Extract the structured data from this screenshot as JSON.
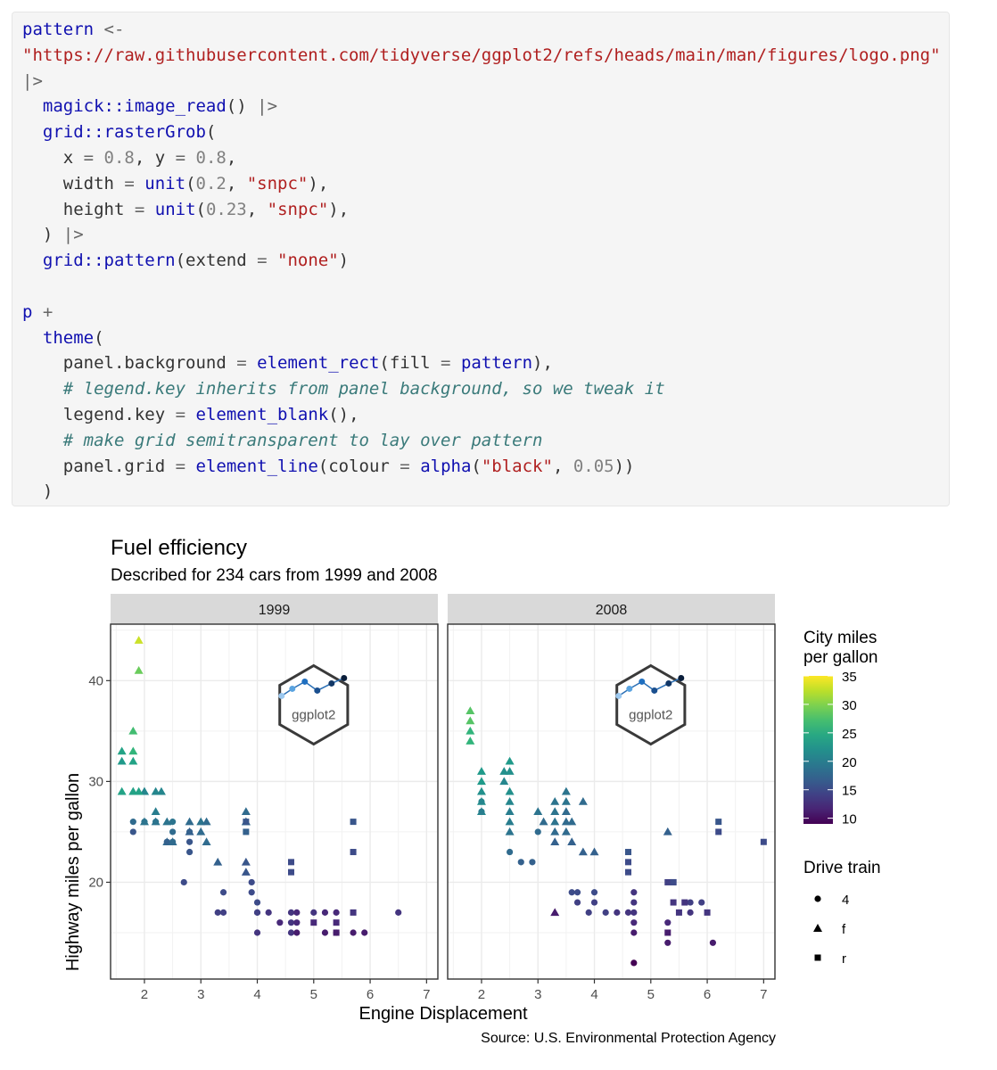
{
  "code": {
    "lines": [
      [
        {
          "t": "pattern",
          "c": "kw"
        },
        {
          "t": " <-",
          "c": "op"
        }
      ],
      [
        {
          "t": "\"https://raw.githubusercontent.com/tidyverse/ggplot2/refs/heads/main/man/figures/logo.png\"",
          "c": "str"
        }
      ],
      [
        {
          "t": "|>",
          "c": "op"
        }
      ],
      [
        {
          "t": "  ",
          "c": "tx"
        },
        {
          "t": "magick::image_read",
          "c": "fn"
        },
        {
          "t": "() ",
          "c": "tx"
        },
        {
          "t": "|>",
          "c": "op"
        }
      ],
      [
        {
          "t": "  ",
          "c": "tx"
        },
        {
          "t": "grid::rasterGrob",
          "c": "fn"
        },
        {
          "t": "(",
          "c": "tx"
        }
      ],
      [
        {
          "t": "    x ",
          "c": "tx"
        },
        {
          "t": "=",
          "c": "op"
        },
        {
          "t": " ",
          "c": "tx"
        },
        {
          "t": "0.8",
          "c": "num"
        },
        {
          "t": ", y ",
          "c": "tx"
        },
        {
          "t": "=",
          "c": "op"
        },
        {
          "t": " ",
          "c": "tx"
        },
        {
          "t": "0.8",
          "c": "num"
        },
        {
          "t": ",",
          "c": "tx"
        }
      ],
      [
        {
          "t": "    width ",
          "c": "tx"
        },
        {
          "t": "=",
          "c": "op"
        },
        {
          "t": " ",
          "c": "tx"
        },
        {
          "t": "unit",
          "c": "fn"
        },
        {
          "t": "(",
          "c": "tx"
        },
        {
          "t": "0.2",
          "c": "num"
        },
        {
          "t": ", ",
          "c": "tx"
        },
        {
          "t": "\"snpc\"",
          "c": "str"
        },
        {
          "t": "),",
          "c": "tx"
        }
      ],
      [
        {
          "t": "    height ",
          "c": "tx"
        },
        {
          "t": "=",
          "c": "op"
        },
        {
          "t": " ",
          "c": "tx"
        },
        {
          "t": "unit",
          "c": "fn"
        },
        {
          "t": "(",
          "c": "tx"
        },
        {
          "t": "0.23",
          "c": "num"
        },
        {
          "t": ", ",
          "c": "tx"
        },
        {
          "t": "\"snpc\"",
          "c": "str"
        },
        {
          "t": "),",
          "c": "tx"
        }
      ],
      [
        {
          "t": "  ) ",
          "c": "tx"
        },
        {
          "t": "|>",
          "c": "op"
        }
      ],
      [
        {
          "t": "  ",
          "c": "tx"
        },
        {
          "t": "grid::pattern",
          "c": "fn"
        },
        {
          "t": "(extend ",
          "c": "tx"
        },
        {
          "t": "=",
          "c": "op"
        },
        {
          "t": " ",
          "c": "tx"
        },
        {
          "t": "\"none\"",
          "c": "str"
        },
        {
          "t": ")",
          "c": "tx"
        }
      ],
      [],
      [
        {
          "t": "p",
          "c": "kw"
        },
        {
          "t": " +",
          "c": "op"
        }
      ],
      [
        {
          "t": "  ",
          "c": "tx"
        },
        {
          "t": "theme",
          "c": "fn"
        },
        {
          "t": "(",
          "c": "tx"
        }
      ],
      [
        {
          "t": "    panel.background ",
          "c": "tx"
        },
        {
          "t": "=",
          "c": "op"
        },
        {
          "t": " ",
          "c": "tx"
        },
        {
          "t": "element_rect",
          "c": "fn"
        },
        {
          "t": "(fill ",
          "c": "tx"
        },
        {
          "t": "=",
          "c": "op"
        },
        {
          "t": " ",
          "c": "tx"
        },
        {
          "t": "pattern",
          "c": "kw"
        },
        {
          "t": "),",
          "c": "tx"
        }
      ],
      [
        {
          "t": "    # legend.key inherits from panel background, so we tweak it",
          "c": "cm"
        }
      ],
      [
        {
          "t": "    legend.key ",
          "c": "tx"
        },
        {
          "t": "=",
          "c": "op"
        },
        {
          "t": " ",
          "c": "tx"
        },
        {
          "t": "element_blank",
          "c": "fn"
        },
        {
          "t": "(),",
          "c": "tx"
        }
      ],
      [
        {
          "t": "    # make grid semitransparent to lay over pattern",
          "c": "cm"
        }
      ],
      [
        {
          "t": "    panel.grid ",
          "c": "tx"
        },
        {
          "t": "=",
          "c": "op"
        },
        {
          "t": " ",
          "c": "tx"
        },
        {
          "t": "element_line",
          "c": "fn"
        },
        {
          "t": "(colour ",
          "c": "tx"
        },
        {
          "t": "=",
          "c": "op"
        },
        {
          "t": " ",
          "c": "tx"
        },
        {
          "t": "alpha",
          "c": "fn"
        },
        {
          "t": "(",
          "c": "tx"
        },
        {
          "t": "\"black\"",
          "c": "str"
        },
        {
          "t": ", ",
          "c": "tx"
        },
        {
          "t": "0.05",
          "c": "num"
        },
        {
          "t": "))",
          "c": "tx"
        }
      ],
      [
        {
          "t": "  )",
          "c": "tx"
        }
      ]
    ]
  },
  "chart_data": {
    "type": "scatter",
    "title": "Fuel efficiency",
    "subtitle": "Described for 234 cars from 1999 and 2008",
    "xlabel": "Engine Displacement",
    "ylabel": "Highway miles per gallon",
    "caption": "Source: U.S. Environmental Protection Agency",
    "xlim": [
      1.4,
      7.2
    ],
    "ylim": [
      10.4,
      45.6
    ],
    "x_ticks": [
      2,
      3,
      4,
      5,
      6,
      7
    ],
    "y_ticks": [
      20,
      30,
      40
    ],
    "grid": true,
    "facets": [
      "1999",
      "2008"
    ],
    "logo_text": "ggplot2",
    "legend": {
      "placement": "right",
      "color_title": "City miles\nper gallon",
      "color_breaks": [
        10,
        15,
        20,
        25,
        30,
        35
      ],
      "color_range": [
        9,
        35
      ],
      "shape_title": "Drive train",
      "shape_entries": [
        "4",
        "f",
        "r"
      ]
    },
    "series_encoding": "each point: [displ, hwy, cty, drv]",
    "points_1999": [
      [
        1.8,
        29,
        21,
        "f"
      ],
      [
        2.0,
        29,
        20,
        "f"
      ],
      [
        2.0,
        29,
        21,
        "f"
      ],
      [
        2.2,
        26,
        19,
        "f"
      ],
      [
        2.2,
        27,
        20,
        "f"
      ],
      [
        2.4,
        26,
        19,
        "f"
      ],
      [
        2.4,
        24,
        18,
        "f"
      ],
      [
        2.5,
        24,
        18,
        "f"
      ],
      [
        2.8,
        26,
        18,
        "f"
      ],
      [
        2.8,
        25,
        17,
        "f"
      ],
      [
        3.0,
        26,
        19,
        "f"
      ],
      [
        3.0,
        25,
        18,
        "f"
      ],
      [
        3.1,
        26,
        18,
        "f"
      ],
      [
        3.1,
        24,
        18,
        "f"
      ],
      [
        3.3,
        22,
        17,
        "f"
      ],
      [
        3.8,
        26,
        18,
        "f"
      ],
      [
        3.8,
        27,
        18,
        "f"
      ],
      [
        3.8,
        22,
        16,
        "f"
      ],
      [
        3.8,
        21,
        16,
        "f"
      ],
      [
        3.8,
        26,
        18,
        "f"
      ],
      [
        1.6,
        33,
        24,
        "f"
      ],
      [
        1.6,
        32,
        23,
        "f"
      ],
      [
        1.6,
        29,
        24,
        "f"
      ],
      [
        1.8,
        35,
        27,
        "f"
      ],
      [
        1.8,
        33,
        26,
        "f"
      ],
      [
        1.8,
        29,
        24,
        "f"
      ],
      [
        1.8,
        32,
        24,
        "f"
      ],
      [
        1.9,
        44,
        33,
        "f"
      ],
      [
        1.9,
        41,
        29,
        "f"
      ],
      [
        1.9,
        29,
        24,
        "f"
      ],
      [
        2.0,
        26,
        19,
        "f"
      ],
      [
        2.2,
        29,
        21,
        "f"
      ],
      [
        2.3,
        29,
        21,
        "f"
      ],
      [
        1.8,
        26,
        18,
        "4"
      ],
      [
        1.8,
        25,
        16,
        "4"
      ],
      [
        2.0,
        26,
        19,
        "4"
      ],
      [
        2.2,
        26,
        19,
        "4"
      ],
      [
        2.4,
        24,
        17,
        "4"
      ],
      [
        2.5,
        25,
        18,
        "4"
      ],
      [
        2.5,
        24,
        18,
        "4"
      ],
      [
        2.5,
        26,
        19,
        "4"
      ],
      [
        2.7,
        20,
        15,
        "4"
      ],
      [
        2.8,
        25,
        17,
        "4"
      ],
      [
        2.8,
        24,
        16,
        "4"
      ],
      [
        2.8,
        23,
        16,
        "4"
      ],
      [
        3.3,
        17,
        14,
        "4"
      ],
      [
        3.4,
        17,
        14,
        "4"
      ],
      [
        3.4,
        19,
        15,
        "4"
      ],
      [
        3.9,
        20,
        15,
        "4"
      ],
      [
        3.9,
        19,
        15,
        "4"
      ],
      [
        4.0,
        17,
        14,
        "4"
      ],
      [
        4.0,
        15,
        13,
        "4"
      ],
      [
        4.0,
        18,
        15,
        "4"
      ],
      [
        4.0,
        17,
        14,
        "4"
      ],
      [
        4.6,
        17,
        13,
        "4"
      ],
      [
        4.6,
        16,
        13,
        "4"
      ],
      [
        4.6,
        15,
        13,
        "4"
      ],
      [
        4.7,
        17,
        12,
        "4"
      ],
      [
        4.7,
        15,
        11,
        "4"
      ],
      [
        4.7,
        16,
        12,
        "4"
      ],
      [
        5.0,
        17,
        13,
        "4"
      ],
      [
        5.2,
        15,
        11,
        "4"
      ],
      [
        5.2,
        17,
        12,
        "4"
      ],
      [
        5.4,
        15,
        11,
        "4"
      ],
      [
        5.4,
        17,
        12,
        "4"
      ],
      [
        5.7,
        15,
        11,
        "4"
      ],
      [
        5.9,
        15,
        11,
        "4"
      ],
      [
        6.5,
        17,
        13,
        "4"
      ],
      [
        4.2,
        17,
        13,
        "4"
      ],
      [
        4.4,
        16,
        12,
        "4"
      ],
      [
        3.8,
        25,
        17,
        "r"
      ],
      [
        3.8,
        26,
        16,
        "r"
      ],
      [
        4.6,
        21,
        15,
        "r"
      ],
      [
        4.6,
        22,
        15,
        "r"
      ],
      [
        5.0,
        16,
        12,
        "r"
      ],
      [
        5.4,
        16,
        12,
        "r"
      ],
      [
        5.4,
        15,
        11,
        "r"
      ],
      [
        5.7,
        26,
        16,
        "r"
      ],
      [
        5.7,
        23,
        15,
        "r"
      ],
      [
        5.7,
        17,
        13,
        "r"
      ]
    ],
    "points_2008": [
      [
        1.8,
        37,
        28,
        "f"
      ],
      [
        1.8,
        36,
        28,
        "f"
      ],
      [
        1.8,
        35,
        26,
        "f"
      ],
      [
        1.8,
        34,
        26,
        "f"
      ],
      [
        2.0,
        31,
        23,
        "f"
      ],
      [
        2.0,
        30,
        23,
        "f"
      ],
      [
        2.0,
        29,
        22,
        "f"
      ],
      [
        2.0,
        28,
        22,
        "f"
      ],
      [
        2.0,
        27,
        21,
        "f"
      ],
      [
        2.4,
        31,
        22,
        "f"
      ],
      [
        2.4,
        30,
        21,
        "f"
      ],
      [
        2.5,
        32,
        23,
        "f"
      ],
      [
        2.5,
        31,
        22,
        "f"
      ],
      [
        2.5,
        29,
        22,
        "f"
      ],
      [
        2.5,
        28,
        21,
        "f"
      ],
      [
        2.5,
        27,
        20,
        "f"
      ],
      [
        2.5,
        26,
        20,
        "f"
      ],
      [
        2.5,
        25,
        19,
        "f"
      ],
      [
        3.0,
        27,
        19,
        "f"
      ],
      [
        3.1,
        26,
        18,
        "f"
      ],
      [
        3.3,
        28,
        19,
        "f"
      ],
      [
        3.3,
        27,
        19,
        "f"
      ],
      [
        3.3,
        26,
        19,
        "f"
      ],
      [
        3.3,
        25,
        18,
        "f"
      ],
      [
        3.3,
        24,
        17,
        "f"
      ],
      [
        3.3,
        17,
        11,
        "f"
      ],
      [
        3.5,
        29,
        19,
        "f"
      ],
      [
        3.5,
        28,
        19,
        "f"
      ],
      [
        3.5,
        27,
        18,
        "f"
      ],
      [
        3.5,
        26,
        18,
        "f"
      ],
      [
        3.5,
        25,
        18,
        "f"
      ],
      [
        3.6,
        26,
        18,
        "f"
      ],
      [
        3.6,
        24,
        17,
        "f"
      ],
      [
        3.8,
        28,
        18,
        "f"
      ],
      [
        3.8,
        23,
        17,
        "f"
      ],
      [
        4.0,
        23,
        17,
        "f"
      ],
      [
        5.3,
        25,
        17,
        "f"
      ],
      [
        2.0,
        28,
        21,
        "4"
      ],
      [
        2.0,
        27,
        20,
        "4"
      ],
      [
        2.5,
        23,
        18,
        "4"
      ],
      [
        2.7,
        22,
        17,
        "4"
      ],
      [
        2.9,
        22,
        17,
        "4"
      ],
      [
        3.0,
        25,
        18,
        "4"
      ],
      [
        3.6,
        19,
        15,
        "4"
      ],
      [
        3.7,
        19,
        15,
        "4"
      ],
      [
        3.7,
        18,
        14,
        "4"
      ],
      [
        3.9,
        17,
        14,
        "4"
      ],
      [
        4.0,
        19,
        15,
        "4"
      ],
      [
        4.0,
        18,
        14,
        "4"
      ],
      [
        4.2,
        17,
        14,
        "4"
      ],
      [
        4.4,
        17,
        13,
        "4"
      ],
      [
        4.6,
        17,
        13,
        "4"
      ],
      [
        4.7,
        19,
        13,
        "4"
      ],
      [
        4.7,
        18,
        13,
        "4"
      ],
      [
        4.7,
        17,
        13,
        "4"
      ],
      [
        4.7,
        16,
        12,
        "4"
      ],
      [
        4.7,
        15,
        11,
        "4"
      ],
      [
        4.7,
        12,
        9,
        "4"
      ],
      [
        5.3,
        16,
        12,
        "4"
      ],
      [
        5.3,
        14,
        11,
        "4"
      ],
      [
        5.7,
        17,
        13,
        "4"
      ],
      [
        5.7,
        18,
        14,
        "4"
      ],
      [
        5.9,
        18,
        14,
        "4"
      ],
      [
        6.1,
        14,
        11,
        "4"
      ],
      [
        4.6,
        23,
        16,
        "r"
      ],
      [
        4.6,
        22,
        15,
        "r"
      ],
      [
        4.6,
        21,
        15,
        "r"
      ],
      [
        5.3,
        20,
        14,
        "r"
      ],
      [
        5.3,
        15,
        11,
        "r"
      ],
      [
        5.4,
        20,
        14,
        "r"
      ],
      [
        5.4,
        20,
        15,
        "r"
      ],
      [
        5.4,
        18,
        13,
        "r"
      ],
      [
        5.5,
        17,
        13,
        "r"
      ],
      [
        5.6,
        18,
        13,
        "r"
      ],
      [
        6.0,
        17,
        13,
        "r"
      ],
      [
        6.2,
        26,
        16,
        "r"
      ],
      [
        6.2,
        25,
        15,
        "r"
      ],
      [
        7.0,
        24,
        15,
        "r"
      ]
    ]
  }
}
